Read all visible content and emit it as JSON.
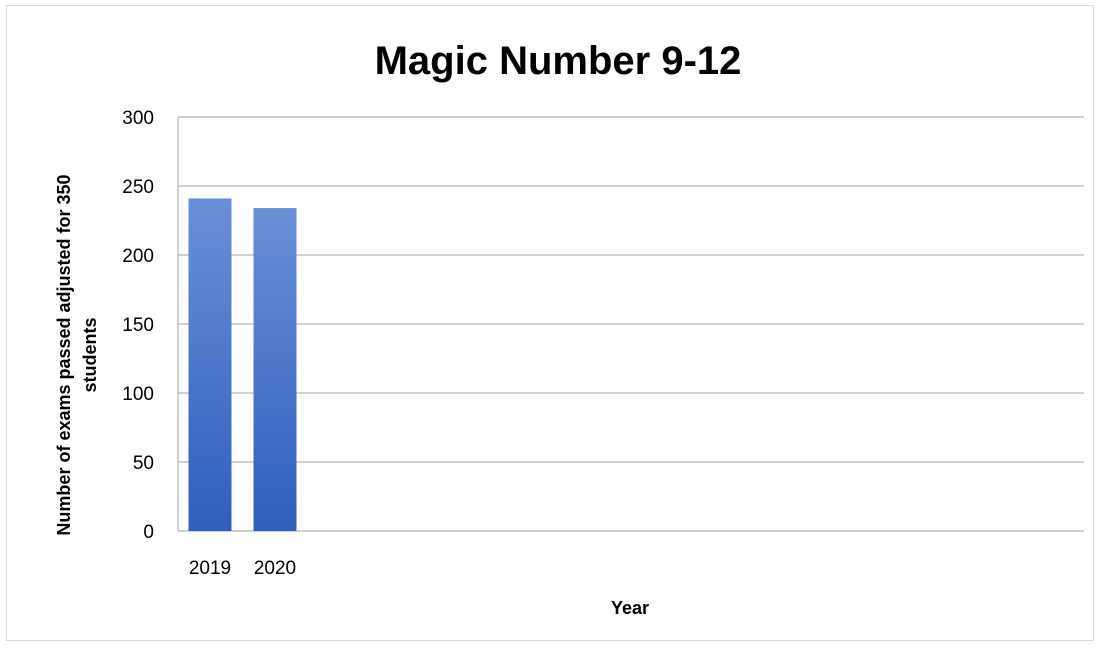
{
  "chart_data": {
    "type": "bar",
    "title": "Magic Number 9-12",
    "xlabel": "Year",
    "ylabel_lines": [
      "Number of exams passed adjusted for 350",
      "students"
    ],
    "categories": [
      "2019",
      "2020"
    ],
    "values": [
      241,
      234
    ],
    "ylim": [
      0,
      300
    ],
    "yticks": [
      "0",
      "50",
      "100",
      "150",
      "200",
      "250",
      "300"
    ],
    "grid": true,
    "legend": "none",
    "colors": {
      "bar_top": "#6a8fd6",
      "bar_bottom": "#2e5fbd",
      "grid": "#a6a6a6"
    }
  }
}
